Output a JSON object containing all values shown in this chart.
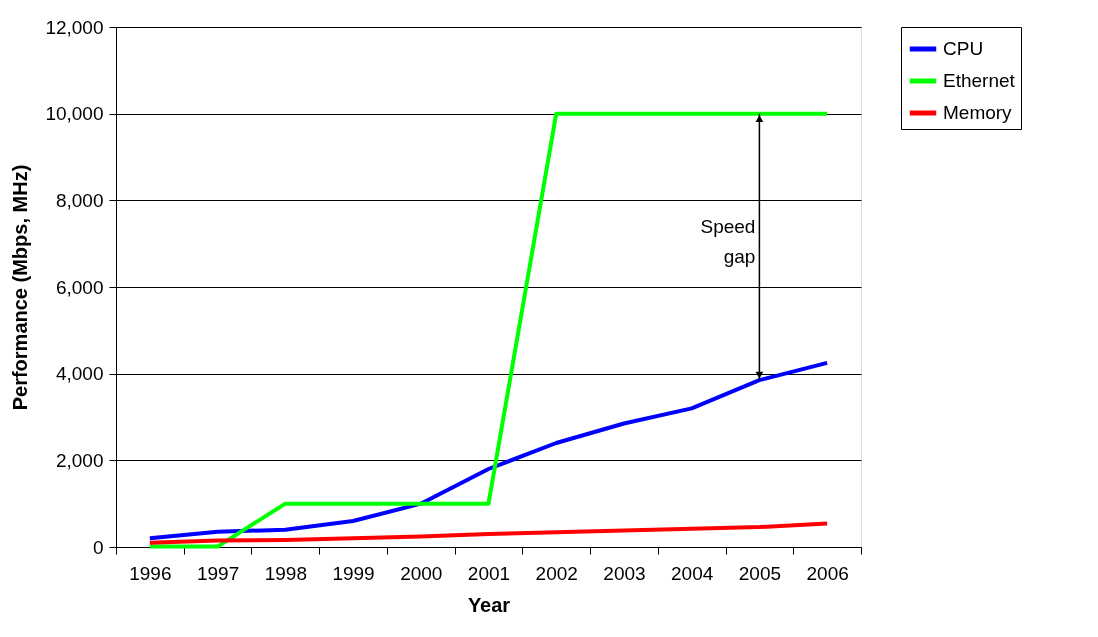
{
  "chart_data": {
    "type": "line",
    "xlabel": "Year",
    "ylabel": "Performance (Mbps, MHz)",
    "categories": [
      "1996",
      "1997",
      "1998",
      "1999",
      "2000",
      "2001",
      "2002",
      "2003",
      "2004",
      "2005",
      "2006"
    ],
    "series": [
      {
        "name": "CPU",
        "color": "#0000ff",
        "values": [
          200,
          350,
          400,
          600,
          1000,
          1800,
          2400,
          2850,
          3200,
          3850,
          4250
        ]
      },
      {
        "name": "Ethernet",
        "color": "#00ff00",
        "values": [
          10,
          10,
          1000,
          1000,
          1000,
          1000,
          10000,
          10000,
          10000,
          10000,
          10000
        ]
      },
      {
        "name": "Memory",
        "color": "#ff0000",
        "values": [
          100,
          150,
          160,
          200,
          240,
          300,
          340,
          380,
          420,
          460,
          540
        ]
      }
    ],
    "ylim": [
      0,
      12000
    ],
    "yticks": [
      0,
      {
        "value": 2000,
        "label": "2,000"
      },
      {
        "value": 4000,
        "label": "4,000"
      },
      {
        "value": 6000,
        "label": "6,000"
      },
      {
        "value": 8000,
        "label": "8,000"
      },
      {
        "value": 10000,
        "label": "10,000"
      },
      {
        "value": 12000,
        "label": "12,000"
      }
    ],
    "grid": "y",
    "legend": "right",
    "marker": "none",
    "line_style": "solid",
    "annotations": [
      "Speed gap"
    ]
  }
}
